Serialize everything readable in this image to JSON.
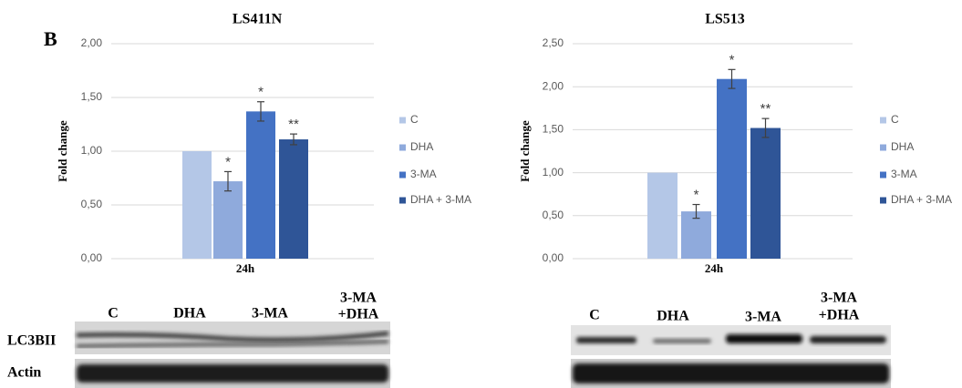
{
  "panel_label": "B",
  "chart_data": [
    {
      "type": "bar",
      "title": "LS411N",
      "y_label": "Fold change",
      "categories": [
        "24h"
      ],
      "ylim": [
        0,
        2
      ],
      "yticks": [
        {
          "value": 0,
          "label": "0,00"
        },
        {
          "value": 0.5,
          "label": "0,50"
        },
        {
          "value": 1,
          "label": "1,00"
        },
        {
          "value": 1.5,
          "label": "1,50"
        },
        {
          "value": 2,
          "label": "2,00"
        }
      ],
      "grid": true,
      "legend": "right",
      "series": [
        {
          "name": "C",
          "color": "#b4c7e7",
          "values": [
            1.0
          ],
          "errors": [
            null
          ],
          "significance": [
            null
          ]
        },
        {
          "name": "DHA",
          "color": "#8faadc",
          "values": [
            0.72
          ],
          "errors": [
            0.09
          ],
          "significance": [
            "*"
          ]
        },
        {
          "name": "3-MA",
          "color": "#4472c4",
          "values": [
            1.37
          ],
          "errors": [
            0.09
          ],
          "significance": [
            "*"
          ]
        },
        {
          "name": "DHA + 3-MA",
          "color": "#2f5597",
          "values": [
            1.11
          ],
          "errors": [
            0.05
          ],
          "significance": [
            "**"
          ]
        }
      ]
    },
    {
      "type": "bar",
      "title": "LS513",
      "y_label": "Fold change",
      "categories": [
        "24h"
      ],
      "ylim": [
        0,
        2.5
      ],
      "yticks": [
        {
          "value": 0,
          "label": "0,00"
        },
        {
          "value": 0.5,
          "label": "0,50"
        },
        {
          "value": 1,
          "label": "1,00"
        },
        {
          "value": 1.5,
          "label": "1,50"
        },
        {
          "value": 2,
          "label": "2,00"
        },
        {
          "value": 2.5,
          "label": "2,50"
        }
      ],
      "grid": true,
      "legend": "right",
      "series": [
        {
          "name": "C",
          "color": "#b4c7e7",
          "values": [
            1.0
          ],
          "errors": [
            null
          ],
          "significance": [
            null
          ]
        },
        {
          "name": "DHA",
          "color": "#8faadc",
          "values": [
            0.55
          ],
          "errors": [
            0.08
          ],
          "significance": [
            "*"
          ]
        },
        {
          "name": "3-MA",
          "color": "#4472c4",
          "values": [
            2.09
          ],
          "errors": [
            0.11
          ],
          "significance": [
            "*"
          ]
        },
        {
          "name": "DHA + 3-MA",
          "color": "#2f5597",
          "values": [
            1.52
          ],
          "errors": [
            0.11
          ],
          "significance": [
            "**"
          ]
        }
      ]
    }
  ],
  "blots": [
    {
      "lanes": [
        "C",
        "DHA",
        "3-MA",
        [
          "3-MA",
          "+DHA"
        ]
      ],
      "rows": [
        "LC3BII",
        "Actin"
      ]
    },
    {
      "lanes": [
        "C",
        "DHA",
        "3-MA",
        [
          "3-MA",
          "+DHA"
        ]
      ]
    }
  ]
}
